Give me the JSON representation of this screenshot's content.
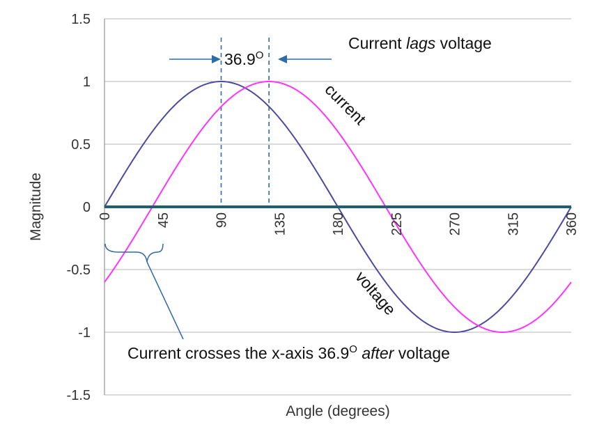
{
  "chart_data": {
    "type": "line",
    "title": "",
    "xlabel": "Angle (degrees)",
    "ylabel": "Magnitude",
    "xlim": [
      0,
      360
    ],
    "ylim": [
      -1.5,
      1.5
    ],
    "x_ticks": [
      "0",
      "45",
      "90",
      "135",
      "180",
      "225",
      "270",
      "315",
      "360"
    ],
    "y_ticks": [
      "1.5",
      "1",
      "0.5",
      "0",
      "-0.5",
      "-1",
      "-1.5"
    ],
    "grid": "horizontal",
    "phase_shift_deg": 36.9,
    "series": [
      {
        "name": "voltage",
        "formula": "sin(x)",
        "color": "#4B4BA0",
        "x": [
          0,
          45,
          90,
          135,
          180,
          225,
          270,
          315,
          360
        ],
        "values": [
          0,
          0.707,
          1,
          0.707,
          0,
          -0.707,
          -1,
          -0.707,
          0
        ]
      },
      {
        "name": "current",
        "formula": "sin(x - 36.9)",
        "color": "#FF33FF",
        "x": [
          0,
          45,
          90,
          135,
          180,
          225,
          270,
          315,
          360
        ],
        "values": [
          -0.6,
          0.141,
          0.8,
          0.99,
          0.6,
          -0.141,
          -0.8,
          -0.99,
          -0.6
        ]
      }
    ],
    "annotations": {
      "lag_title_prefix": "Current ",
      "lag_title_emph": "lags",
      "lag_title_suffix": " voltage",
      "angle_value": "36.9",
      "angle_degree": "O",
      "crossing_prefix": "Current crosses the x-axis 36.9",
      "crossing_degree": "O",
      "crossing_emph": "after",
      "crossing_suffix": " voltage",
      "current_label": "current",
      "voltage_label": "voltage"
    },
    "colors": {
      "zero_line": "#1F5F6F",
      "marker": "#2E6BA8",
      "grid": "#B5B5B5"
    }
  }
}
